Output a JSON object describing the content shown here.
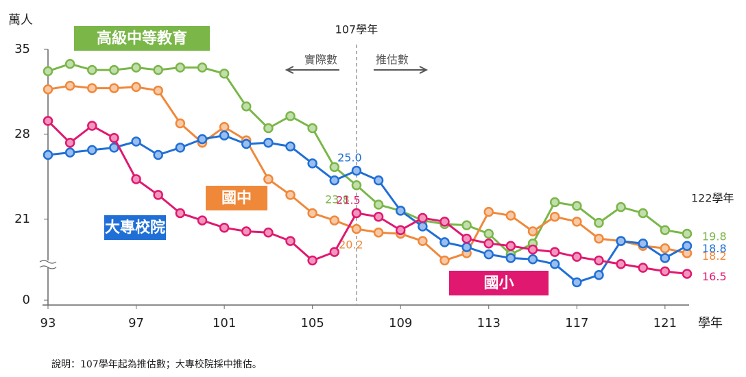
{
  "chart_data": {
    "type": "line",
    "y_label": "萬人",
    "x_label": "學年",
    "x": [
      93,
      94,
      95,
      96,
      97,
      98,
      99,
      100,
      101,
      102,
      103,
      104,
      105,
      106,
      107,
      108,
      109,
      110,
      111,
      112,
      113,
      114,
      115,
      116,
      117,
      118,
      119,
      120,
      121,
      122
    ],
    "xlim": [
      93,
      122
    ],
    "xticks": [
      93,
      97,
      101,
      105,
      109,
      113,
      117,
      121
    ],
    "ylim": [
      0,
      35
    ],
    "yticks": [
      0,
      21,
      28,
      35
    ],
    "axis_break": true,
    "divider": {
      "x": 107,
      "label": "107學年",
      "left": "實際數",
      "right": "推估數"
    },
    "end_label": "122學年",
    "note": "說明：107學年起為推估數；大專校院採中推估。",
    "series": [
      {
        "name": "高級中等教育",
        "color": "#7ab648",
        "values": [
          33.2,
          33.8,
          33.3,
          33.3,
          33.5,
          33.3,
          33.5,
          33.5,
          33.0,
          30.3,
          28.5,
          29.5,
          28.5,
          25.3,
          23.8,
          22.2,
          21.7,
          20.9,
          20.6,
          20.5,
          19.8,
          18.1,
          19.0,
          22.4,
          22.1,
          20.7,
          22.0,
          21.5,
          20.1,
          19.8
        ],
        "value_labels": [
          null,
          null,
          null,
          null,
          null,
          null,
          null,
          null,
          null,
          null,
          null,
          null,
          null,
          null,
          "23.8",
          null,
          null,
          null,
          null,
          null,
          null,
          null,
          null,
          null,
          null,
          null,
          null,
          null,
          null,
          "19.8"
        ]
      },
      {
        "name": "國中",
        "color": "#f0883a",
        "values": [
          31.7,
          32.0,
          31.8,
          31.8,
          31.9,
          31.6,
          28.9,
          27.3,
          28.6,
          27.5,
          24.3,
          23.0,
          21.5,
          20.9,
          20.2,
          19.9,
          19.8,
          19.2,
          17.6,
          18.2,
          21.6,
          21.3,
          20.0,
          21.2,
          20.8,
          19.4,
          19.2,
          18.8,
          18.6,
          18.2
        ],
        "value_labels": [
          null,
          null,
          null,
          null,
          null,
          null,
          null,
          null,
          null,
          null,
          null,
          null,
          null,
          null,
          "20.2",
          null,
          null,
          null,
          null,
          null,
          null,
          null,
          null,
          null,
          null,
          null,
          null,
          null,
          null,
          "18.2"
        ]
      },
      {
        "name": "大專校院",
        "color": "#1f6fd6",
        "values": [
          26.3,
          26.5,
          26.7,
          26.9,
          27.4,
          26.3,
          26.9,
          27.6,
          27.9,
          27.2,
          27.3,
          27.0,
          25.6,
          24.2,
          25.0,
          24.2,
          21.7,
          20.4,
          19.1,
          18.7,
          18.1,
          17.8,
          17.7,
          17.3,
          15.8,
          16.4,
          19.2,
          19.0,
          17.8,
          18.8
        ],
        "value_labels": [
          null,
          null,
          null,
          null,
          null,
          null,
          null,
          null,
          null,
          null,
          null,
          null,
          null,
          null,
          "25.0",
          null,
          null,
          null,
          null,
          null,
          null,
          null,
          null,
          null,
          null,
          null,
          null,
          null,
          null,
          "18.8"
        ]
      },
      {
        "name": "國小",
        "color": "#e0186f",
        "values": [
          29.1,
          27.3,
          28.7,
          27.7,
          24.3,
          23.0,
          21.5,
          20.9,
          20.3,
          20.0,
          19.9,
          19.2,
          17.6,
          18.3,
          21.5,
          21.2,
          20.1,
          21.1,
          20.8,
          19.4,
          19.0,
          18.8,
          18.5,
          18.3,
          17.9,
          17.6,
          17.3,
          17.0,
          16.7,
          16.5
        ],
        "value_labels": [
          null,
          null,
          null,
          null,
          null,
          null,
          null,
          null,
          null,
          null,
          null,
          null,
          null,
          null,
          "21.5",
          null,
          null,
          null,
          null,
          null,
          null,
          null,
          null,
          null,
          null,
          null,
          null,
          null,
          null,
          "16.5"
        ]
      }
    ]
  }
}
